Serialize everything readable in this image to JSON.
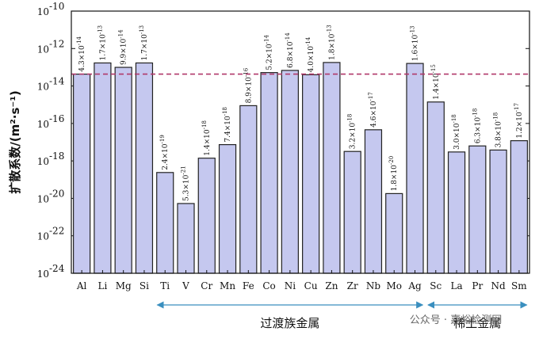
{
  "chart_data": {
    "type": "bar",
    "ylabel": "扩散系数/(m²·s⁻¹)",
    "yscale": "log",
    "ylim": [
      1e-24,
      1e-10
    ],
    "yticks": [
      {
        "base": "10",
        "exp": "-10"
      },
      {
        "base": "10",
        "exp": "-12"
      },
      {
        "base": "10",
        "exp": "-14"
      },
      {
        "base": "10",
        "exp": "-16"
      },
      {
        "base": "10",
        "exp": "-18"
      },
      {
        "base": "10",
        "exp": "-20"
      },
      {
        "base": "10",
        "exp": "-22"
      },
      {
        "base": "10",
        "exp": "-24"
      }
    ],
    "categories": [
      "Al",
      "Li",
      "Mg",
      "Si",
      "Ti",
      "V",
      "Cr",
      "Mn",
      "Fe",
      "Co",
      "Ni",
      "Cu",
      "Zn",
      "Zr",
      "Nb",
      "Mo",
      "Ag",
      "Sc",
      "La",
      "Pr",
      "Nd",
      "Sm"
    ],
    "values": [
      4.3e-14,
      1.7e-13,
      9.9e-14,
      1.7e-13,
      2.4e-19,
      5.3e-21,
      1.4e-18,
      7.4e-18,
      8.9e-16,
      5.2e-14,
      6.8e-14,
      4e-14,
      1.8e-13,
      3.2e-18,
      4.6e-17,
      1.8e-20,
      1.6e-13,
      1.4e-15,
      3e-18,
      6.3e-18,
      3.8e-18,
      1.2e-17
    ],
    "labels": [
      {
        "m": "4.3",
        "e": "-14"
      },
      {
        "m": "1.7",
        "e": "-13"
      },
      {
        "m": "9.9",
        "e": "-14"
      },
      {
        "m": "1.7",
        "e": "-13"
      },
      {
        "m": "2.4",
        "e": "-19"
      },
      {
        "m": "5.3",
        "e": "-21"
      },
      {
        "m": "1.4",
        "e": "-18"
      },
      {
        "m": "7.4",
        "e": "-18"
      },
      {
        "m": "8.9",
        "e": "-16"
      },
      {
        "m": "5.2",
        "e": "-14"
      },
      {
        "m": "6.8",
        "e": "-14"
      },
      {
        "m": "4.0",
        "e": "-14"
      },
      {
        "m": "1.8",
        "e": "-13"
      },
      {
        "m": "3.2",
        "e": "-18"
      },
      {
        "m": "4.6",
        "e": "-17"
      },
      {
        "m": "1.8",
        "e": "-20"
      },
      {
        "m": "1.6",
        "e": "-13"
      },
      {
        "m": "1.4",
        "e": "-15"
      },
      {
        "m": "3.0",
        "e": "-18"
      },
      {
        "m": "6.3",
        "e": "-18"
      },
      {
        "m": "3.8",
        "e": "-18"
      },
      {
        "m": "1.2",
        "e": "-17"
      }
    ],
    "reference_line": {
      "value": 4.3e-14,
      "style": "dashed",
      "color": "#b0386a"
    },
    "bar_color": "#c5c8ef",
    "bar_edge_color": "#222222",
    "groups": [
      {
        "label": "过渡族金属",
        "from": "Ti",
        "to": "Ag"
      },
      {
        "label": "稀土金属",
        "from": "Sc",
        "to": "Sm"
      }
    ],
    "arrow_color": "#3a8fbf",
    "grid": false
  },
  "watermark": {
    "text": "公众号 · 嘉峪检测网"
  }
}
